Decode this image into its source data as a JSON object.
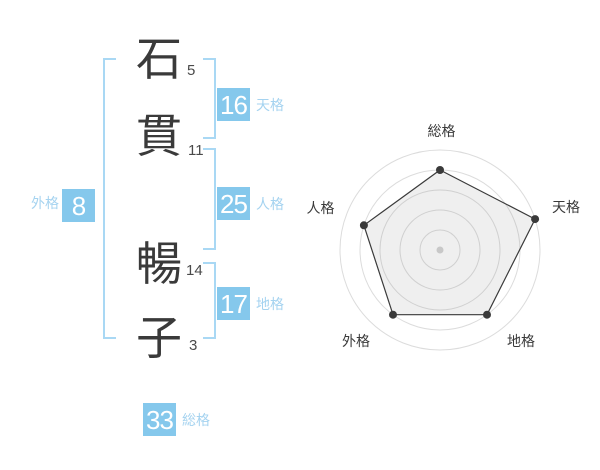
{
  "colors": {
    "badge_bg": "#85C8EC",
    "badge_text": "#FFFFFF",
    "label_blue": "#A5D3F0",
    "bracket_blue": "#A9D8F4",
    "char_color": "#3A3A3A",
    "stroke_num_color": "#4A4A4A",
    "chart_ring": "#DCDCDC",
    "chart_line": "#3A3A3A",
    "chart_fill": "rgba(120,120,120,0.12)",
    "chart_center_dot": "#C8C8C8"
  },
  "name": {
    "surname": [
      {
        "char": "石",
        "strokes": "5"
      },
      {
        "char": "貫",
        "strokes": "11"
      }
    ],
    "given": [
      {
        "char": "暢",
        "strokes": "14"
      },
      {
        "char": "子",
        "strokes": "3"
      }
    ]
  },
  "scores": {
    "tenkaku": {
      "value": "16",
      "label": "天格"
    },
    "jinkaku": {
      "value": "25",
      "label": "人格"
    },
    "chikaku": {
      "value": "17",
      "label": "地格"
    },
    "gaikaku": {
      "value": "8",
      "label": "外格"
    },
    "soukaku": {
      "value": "33",
      "label": "総格"
    }
  },
  "chart_data": {
    "type": "radar",
    "categories": [
      "総格",
      "天格",
      "地格",
      "外格",
      "人格"
    ],
    "values": [
      4,
      5,
      4,
      4,
      4
    ],
    "max": 5,
    "rings": 5,
    "grid": "concentric-circles",
    "legend_position": "none"
  }
}
